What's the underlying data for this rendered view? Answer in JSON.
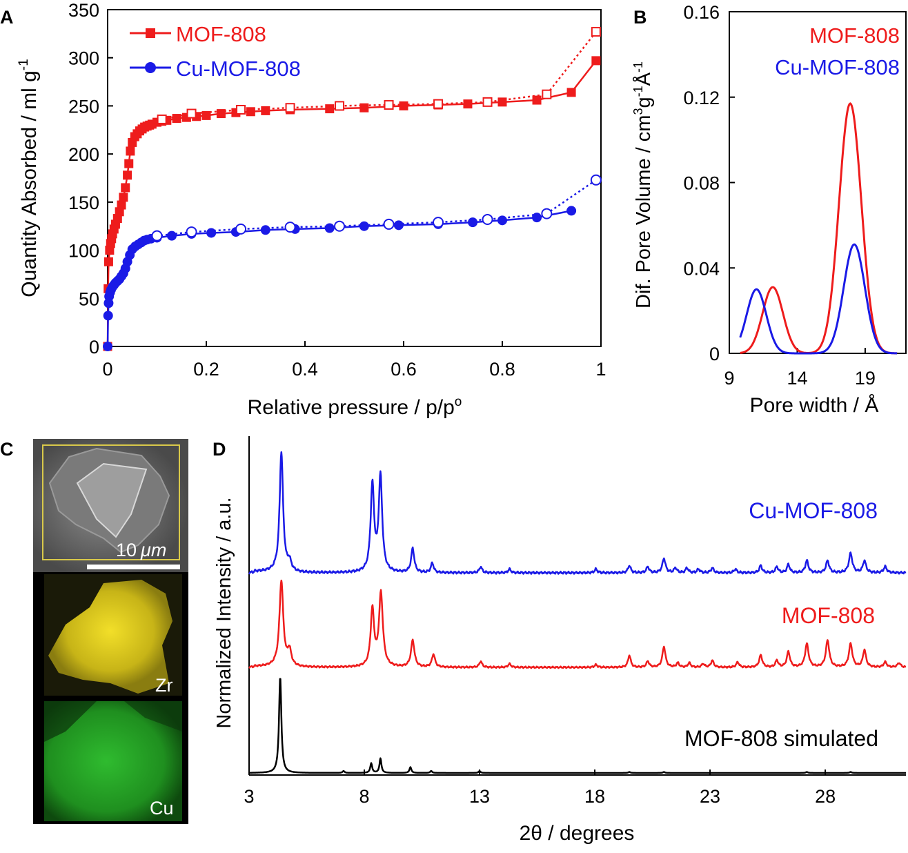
{
  "colors": {
    "mof808": "#ee1c1c",
    "cu_mof808": "#1a1ae6",
    "simulated": "#000000",
    "zr": "#e6d21e",
    "cu": "#1fa31f",
    "scalebox": "#d9c94a"
  },
  "chart_data": [
    {
      "panel": "A",
      "type": "line",
      "title": "",
      "xlabel": "Relative pressure / p/p°",
      "ylabel": "Quantity Absorbed / ml g⁻¹",
      "xlim": [
        0,
        1
      ],
      "ylim": [
        0,
        350
      ],
      "xticks": [
        0,
        0.2,
        0.4,
        0.6,
        0.8,
        1
      ],
      "xtick_labels": [
        "0",
        "0.2",
        "0.4",
        "0.6",
        "0.8",
        "1"
      ],
      "yticks": [
        0,
        50,
        100,
        150,
        200,
        250,
        300,
        350
      ],
      "ytick_labels": [
        "0",
        "50",
        "100",
        "150",
        "200",
        "250",
        "300",
        "350"
      ],
      "legend_position": "top-left",
      "series": [
        {
          "name": "MOF-808",
          "key": "mof808",
          "marker": "square",
          "branch": "adsorption",
          "line": "solid",
          "x": [
            0.0,
            0.001,
            0.002,
            0.004,
            0.006,
            0.008,
            0.01,
            0.013,
            0.016,
            0.02,
            0.024,
            0.028,
            0.032,
            0.036,
            0.04,
            0.043,
            0.046,
            0.05,
            0.055,
            0.06,
            0.065,
            0.07,
            0.075,
            0.08,
            0.085,
            0.09,
            0.1,
            0.11,
            0.12,
            0.14,
            0.16,
            0.18,
            0.2,
            0.23,
            0.26,
            0.29,
            0.32,
            0.37,
            0.45,
            0.52,
            0.6,
            0.67,
            0.73,
            0.8,
            0.87,
            0.94,
            0.99
          ],
          "y": [
            0,
            60,
            88,
            100,
            107,
            112,
            117,
            122,
            127,
            133,
            140,
            147,
            155,
            165,
            178,
            190,
            203,
            212,
            218,
            221,
            224,
            226,
            228,
            229,
            230,
            231,
            233,
            234,
            235,
            237,
            238,
            239,
            240,
            242,
            243,
            244,
            245,
            246,
            247,
            248,
            250,
            251,
            252,
            254,
            256,
            264,
            297
          ]
        },
        {
          "name": "MOF-808 desorption",
          "key": "mof808",
          "marker": "square-open",
          "branch": "desorption",
          "line": "dotted",
          "x": [
            0.99,
            0.89,
            0.77,
            0.67,
            0.57,
            0.47,
            0.37,
            0.27,
            0.17,
            0.11
          ],
          "y": [
            327,
            262,
            254,
            252,
            251,
            250,
            248,
            246,
            242,
            236
          ]
        },
        {
          "name": "Cu-MOF-808",
          "key": "cu_mof808",
          "marker": "circle",
          "branch": "adsorption",
          "line": "solid",
          "x": [
            0.0,
            0.001,
            0.002,
            0.003,
            0.005,
            0.007,
            0.01,
            0.013,
            0.016,
            0.02,
            0.024,
            0.028,
            0.032,
            0.036,
            0.04,
            0.045,
            0.05,
            0.056,
            0.062,
            0.068,
            0.074,
            0.08,
            0.088,
            0.1,
            0.13,
            0.17,
            0.21,
            0.26,
            0.32,
            0.38,
            0.45,
            0.52,
            0.59,
            0.67,
            0.74,
            0.8,
            0.87,
            0.94
          ],
          "y": [
            0,
            32,
            45,
            52,
            56,
            59,
            62,
            64,
            66,
            68,
            70,
            73,
            76,
            81,
            88,
            95,
            101,
            104,
            106,
            108,
            110,
            111,
            112,
            113,
            115,
            117,
            118,
            119,
            121,
            122,
            123,
            125,
            126,
            127,
            129,
            131,
            134,
            141
          ]
        },
        {
          "name": "Cu-MOF-808 desorption",
          "key": "cu_mof808",
          "marker": "circle-open",
          "branch": "desorption",
          "line": "dotted",
          "x": [
            0.99,
            0.89,
            0.77,
            0.67,
            0.57,
            0.47,
            0.37,
            0.27,
            0.17,
            0.1
          ],
          "y": [
            173,
            138,
            132,
            129,
            127,
            125,
            124,
            122,
            119,
            115
          ]
        }
      ],
      "legend": [
        "MOF-808",
        "Cu-MOF-808"
      ]
    },
    {
      "panel": "B",
      "type": "line",
      "title": "",
      "xlabel": "Pore width / Å",
      "ylabel": "Dif. Pore Volume / cm³g⁻¹Å⁻¹",
      "xlim": [
        9,
        22
      ],
      "ylim": [
        0,
        0.16
      ],
      "xticks": [
        9,
        14,
        19
      ],
      "xtick_labels": [
        "9",
        "14",
        "19"
      ],
      "yticks": [
        0,
        0.04,
        0.08,
        0.12,
        0.16
      ],
      "ytick_labels": [
        "0",
        "0.04",
        "0.08",
        "0.12",
        "0.16"
      ],
      "legend_position": "top-right",
      "legend": [
        "MOF-808",
        "Cu-MOF-808"
      ],
      "series": [
        {
          "name": "MOF-808",
          "key": "mof808",
          "peaks": [
            {
              "center": 12.2,
              "height": 0.031,
              "sigma": 0.75
            },
            {
              "center": 17.9,
              "height": 0.117,
              "sigma": 0.82
            }
          ]
        },
        {
          "name": "Cu-MOF-808",
          "key": "cu_mof808",
          "peaks": [
            {
              "center": 11.0,
              "height": 0.03,
              "sigma": 0.72
            },
            {
              "center": 18.2,
              "height": 0.051,
              "sigma": 0.78
            }
          ]
        }
      ]
    },
    {
      "panel": "D",
      "type": "line",
      "title": "",
      "xlabel": "2θ / degrees",
      "ylabel": "Normalized Intensity / a.u.",
      "xlim": [
        3,
        31.5
      ],
      "xticks": [
        3,
        8,
        13,
        18,
        23,
        28
      ],
      "xtick_labels": [
        "3",
        "8",
        "13",
        "18",
        "23",
        "28"
      ],
      "y_scale": "normalized, stacked traces (0 = baseline, 1 = tallest peak of each trace)",
      "series": [
        {
          "name": "Cu-MOF-808",
          "key": "cu_mof808",
          "offset": 2.0,
          "peaks": [
            {
              "pos": 4.4,
              "height": 1.0,
              "width": 0.09
            },
            {
              "pos": 4.75,
              "height": 0.08,
              "width": 0.1
            },
            {
              "pos": 8.35,
              "height": 0.72,
              "width": 0.09
            },
            {
              "pos": 8.7,
              "height": 0.79,
              "width": 0.09
            },
            {
              "pos": 10.1,
              "height": 0.2,
              "width": 0.08
            },
            {
              "pos": 10.95,
              "height": 0.08,
              "width": 0.07
            },
            {
              "pos": 13.05,
              "height": 0.05,
              "width": 0.07
            },
            {
              "pos": 14.3,
              "height": 0.03,
              "width": 0.07
            },
            {
              "pos": 18.05,
              "height": 0.03,
              "width": 0.07
            },
            {
              "pos": 19.5,
              "height": 0.06,
              "width": 0.07
            },
            {
              "pos": 20.3,
              "height": 0.05,
              "width": 0.07
            },
            {
              "pos": 21.0,
              "height": 0.12,
              "width": 0.08
            },
            {
              "pos": 21.5,
              "height": 0.04,
              "width": 0.07
            },
            {
              "pos": 22.0,
              "height": 0.04,
              "width": 0.07
            },
            {
              "pos": 22.5,
              "height": 0.03,
              "width": 0.07
            },
            {
              "pos": 23.1,
              "height": 0.04,
              "width": 0.07
            },
            {
              "pos": 24.1,
              "height": 0.03,
              "width": 0.07
            },
            {
              "pos": 25.2,
              "height": 0.06,
              "width": 0.07
            },
            {
              "pos": 25.9,
              "height": 0.05,
              "width": 0.07
            },
            {
              "pos": 26.4,
              "height": 0.07,
              "width": 0.07
            },
            {
              "pos": 27.2,
              "height": 0.1,
              "width": 0.08
            },
            {
              "pos": 28.1,
              "height": 0.1,
              "width": 0.08
            },
            {
              "pos": 29.1,
              "height": 0.16,
              "width": 0.09
            },
            {
              "pos": 29.7,
              "height": 0.1,
              "width": 0.08
            },
            {
              "pos": 30.6,
              "height": 0.05,
              "width": 0.08
            }
          ]
        },
        {
          "name": "MOF-808",
          "key": "mof808",
          "offset": 1.0,
          "peaks": [
            {
              "pos": 4.4,
              "height": 1.0,
              "width": 0.1
            },
            {
              "pos": 4.75,
              "height": 0.18,
              "width": 0.1
            },
            {
              "pos": 8.35,
              "height": 0.66,
              "width": 0.09
            },
            {
              "pos": 8.72,
              "height": 0.85,
              "width": 0.1
            },
            {
              "pos": 10.1,
              "height": 0.31,
              "width": 0.09
            },
            {
              "pos": 11.0,
              "height": 0.15,
              "width": 0.08
            },
            {
              "pos": 13.05,
              "height": 0.07,
              "width": 0.07
            },
            {
              "pos": 14.3,
              "height": 0.04,
              "width": 0.07
            },
            {
              "pos": 18.05,
              "height": 0.03,
              "width": 0.07
            },
            {
              "pos": 19.5,
              "height": 0.14,
              "width": 0.07
            },
            {
              "pos": 20.3,
              "height": 0.07,
              "width": 0.07
            },
            {
              "pos": 21.0,
              "height": 0.24,
              "width": 0.08
            },
            {
              "pos": 21.6,
              "height": 0.05,
              "width": 0.07
            },
            {
              "pos": 22.1,
              "height": 0.05,
              "width": 0.07
            },
            {
              "pos": 22.7,
              "height": 0.04,
              "width": 0.07
            },
            {
              "pos": 23.1,
              "height": 0.08,
              "width": 0.07
            },
            {
              "pos": 24.2,
              "height": 0.06,
              "width": 0.07
            },
            {
              "pos": 25.2,
              "height": 0.14,
              "width": 0.08
            },
            {
              "pos": 25.9,
              "height": 0.08,
              "width": 0.07
            },
            {
              "pos": 26.4,
              "height": 0.18,
              "width": 0.08
            },
            {
              "pos": 27.2,
              "height": 0.27,
              "width": 0.09
            },
            {
              "pos": 28.1,
              "height": 0.31,
              "width": 0.09
            },
            {
              "pos": 29.1,
              "height": 0.27,
              "width": 0.09
            },
            {
              "pos": 29.7,
              "height": 0.2,
              "width": 0.08
            },
            {
              "pos": 30.6,
              "height": 0.06,
              "width": 0.08
            },
            {
              "pos": 31.2,
              "height": 0.05,
              "width": 0.08
            }
          ]
        },
        {
          "name": "MOF-808 simulated",
          "key": "simulated",
          "offset": 0.0,
          "peaks": [
            {
              "pos": 4.35,
              "height": 1.0,
              "width": 0.06
            },
            {
              "pos": 7.1,
              "height": 0.02,
              "width": 0.05
            },
            {
              "pos": 8.3,
              "height": 0.1,
              "width": 0.05
            },
            {
              "pos": 8.7,
              "height": 0.15,
              "width": 0.05
            },
            {
              "pos": 10.0,
              "height": 0.06,
              "width": 0.05
            },
            {
              "pos": 10.9,
              "height": 0.02,
              "width": 0.05
            },
            {
              "pos": 13.0,
              "height": 0.02,
              "width": 0.05
            },
            {
              "pos": 19.5,
              "height": 0.01,
              "width": 0.05
            },
            {
              "pos": 21.0,
              "height": 0.01,
              "width": 0.05
            },
            {
              "pos": 27.2,
              "height": 0.01,
              "width": 0.05
            },
            {
              "pos": 29.1,
              "height": 0.01,
              "width": 0.05
            }
          ]
        }
      ],
      "legend": [
        "Cu-MOF-808",
        "MOF-808",
        "MOF-808 simulated"
      ]
    }
  ],
  "panels": {
    "a": {
      "label": "A",
      "legend": [
        "MOF-808",
        "Cu-MOF-808"
      ],
      "ylabel_main": "Quantity Absorbed / ml g",
      "ylabel_sup": "-1",
      "xlabel_main": "Relative pressure / p/p",
      "xlabel_sup": "o"
    },
    "b": {
      "label": "B",
      "legend": [
        "MOF-808",
        "Cu-MOF-808"
      ],
      "ylabel_main": "Dif. Pore Volume / cm",
      "ylabel_sup1": "3",
      "ylabel_mid": "g",
      "ylabel_sup2": "-1",
      "ylabel_end": "Å",
      "ylabel_sup3": "-1",
      "xlabel": "Pore width / Å"
    },
    "c": {
      "label": "C",
      "scale_bar": "10 μm",
      "scale_num": "10",
      "scale_unit": "μm",
      "zr_label": "Zr",
      "cu_label": "Cu"
    },
    "d": {
      "label": "D",
      "trace_labels": [
        "Cu-MOF-808",
        "MOF-808",
        "MOF-808 simulated"
      ],
      "ylabel": "Normalized Intensity / a.u.",
      "xlabel": "2θ / degrees"
    }
  }
}
